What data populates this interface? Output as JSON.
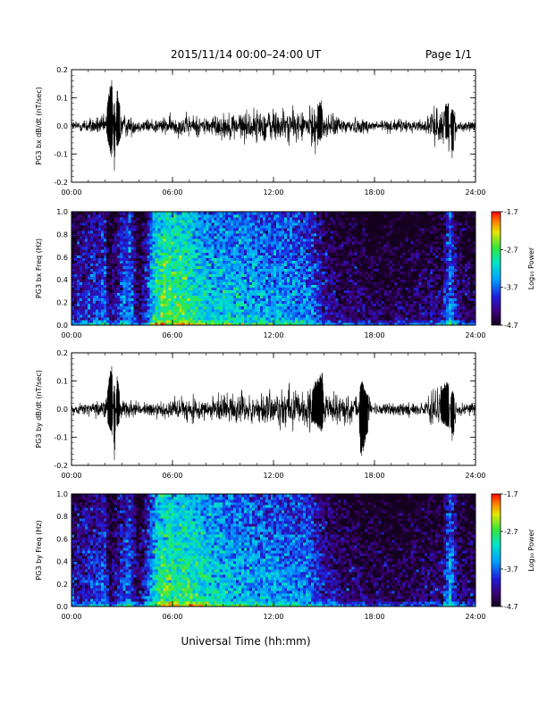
{
  "header": {
    "title": "2015/11/14  00:00–24:00 UT",
    "page_label": "Page 1/1"
  },
  "footer": {
    "xlabel": "Universal Time (hh:mm)"
  },
  "chart_data": [
    {
      "type": "line",
      "ylabel": "PG3 bx dB/dt (nT/sec)",
      "xlabel": "",
      "x_ticks": [
        "00:00",
        "06:00",
        "12:00",
        "18:00",
        "24:00"
      ],
      "xlim": [
        0,
        24
      ],
      "ylim": [
        -0.2,
        0.2
      ],
      "y_ticks": [
        "-0.2",
        "-0.1",
        "0.0",
        "0.1",
        "0.2"
      ],
      "color": "#000000",
      "series": [
        {
          "x": [
            0,
            1,
            2,
            2.4,
            2.55,
            2.7,
            3,
            4,
            5,
            6,
            7,
            8,
            9,
            10,
            11,
            12,
            13,
            14,
            14.8,
            15,
            16,
            17,
            18,
            19,
            20,
            21,
            22.4,
            22.6,
            23,
            24
          ],
          "y": [
            0.015,
            0.025,
            0.03,
            0.2,
            -0.17,
            0.15,
            0.04,
            0.02,
            0.025,
            0.03,
            0.035,
            0.03,
            0.04,
            0.045,
            0.05,
            0.055,
            0.05,
            0.045,
            0.09,
            0.04,
            0.03,
            0.025,
            0.02,
            0.02,
            0.02,
            0.02,
            0.09,
            -0.12,
            0.02,
            0.02
          ]
        }
      ]
    },
    {
      "type": "heatmap",
      "ylabel": "PG3 bx Freq (Hz)",
      "xlabel": "",
      "x_ticks": [
        "00:00",
        "06:00",
        "12:00",
        "18:00",
        "24:00"
      ],
      "xlim": [
        0,
        24
      ],
      "ylim": [
        0,
        1
      ],
      "y_ticks": [
        "0.0",
        "0.2",
        "0.4",
        "0.6",
        "0.8",
        "1.0"
      ],
      "colorbar_label": "Log₁₀ Power",
      "colorbar_ticks": [
        "-1.7",
        "-2.7",
        "-3.7",
        "-4.7"
      ],
      "zlim": [
        -4.7,
        -1.7
      ],
      "x": [
        0,
        1,
        2,
        2.3,
        3,
        3.5,
        4,
        5,
        5.5,
        6,
        7,
        8,
        9,
        10,
        11,
        12,
        13,
        14,
        14.5,
        15,
        16,
        17,
        18,
        19,
        20,
        21,
        22,
        22.5,
        23,
        24
      ],
      "z_mean_log10_power": [
        -4.1,
        -3.9,
        -3.7,
        -4.4,
        -3.7,
        -3.5,
        -4.5,
        -2.9,
        -2.5,
        -2.7,
        -2.8,
        -3.1,
        -3.2,
        -3.2,
        -3.3,
        -3.4,
        -3.4,
        -3.5,
        -3.7,
        -4.1,
        -4.3,
        -4.3,
        -4.4,
        -4.4,
        -4.4,
        -4.3,
        -4.3,
        -3.4,
        -4.3,
        -4.4
      ]
    },
    {
      "type": "line",
      "ylabel": "PG3 by dB/dt (nT/sec)",
      "xlabel": "",
      "x_ticks": [
        "00:00",
        "06:00",
        "12:00",
        "18:00",
        "24:00"
      ],
      "xlim": [
        0,
        24
      ],
      "ylim": [
        -0.2,
        0.2
      ],
      "y_ticks": [
        "-0.2",
        "-0.1",
        "0.0",
        "0.1",
        "0.2"
      ],
      "color": "#000000",
      "series": [
        {
          "x": [
            0,
            1,
            2,
            2.4,
            2.55,
            2.7,
            3,
            4,
            5,
            6,
            7,
            8,
            9,
            10,
            11,
            12,
            13,
            14,
            14.9,
            15,
            16,
            17,
            17.2,
            18,
            19,
            20,
            21,
            22.4,
            22.6,
            23,
            24
          ],
          "y": [
            0.015,
            0.02,
            0.03,
            0.17,
            -0.2,
            0.12,
            0.04,
            0.02,
            0.025,
            0.03,
            0.04,
            0.035,
            0.04,
            0.045,
            0.05,
            0.055,
            0.06,
            0.05,
            0.14,
            0.04,
            0.05,
            0.04,
            -0.19,
            0.02,
            0.02,
            0.02,
            0.02,
            0.11,
            -0.13,
            0.02,
            0.02
          ]
        }
      ]
    },
    {
      "type": "heatmap",
      "ylabel": "PG3 by Freq (Hz)",
      "xlabel": "",
      "x_ticks": [
        "00:00",
        "06:00",
        "12:00",
        "18:00",
        "24:00"
      ],
      "xlim": [
        0,
        24
      ],
      "ylim": [
        0,
        1
      ],
      "y_ticks": [
        "0.0",
        "0.2",
        "0.4",
        "0.6",
        "0.8",
        "1.0"
      ],
      "colorbar_label": "Log₁₀ Power",
      "colorbar_ticks": [
        "-1.7",
        "-2.7",
        "-3.7",
        "-4.7"
      ],
      "zlim": [
        -4.7,
        -1.7
      ],
      "x": [
        0,
        1,
        2,
        2.3,
        3,
        3.5,
        4,
        5,
        5.5,
        6,
        7,
        8,
        9,
        10,
        11,
        12,
        13,
        14,
        14.5,
        15,
        16,
        17,
        18,
        19,
        20,
        21,
        22,
        22.5,
        23,
        24
      ],
      "z_mean_log10_power": [
        -4.1,
        -3.9,
        -3.7,
        -4.4,
        -3.8,
        -3.6,
        -4.5,
        -3.0,
        -2.7,
        -2.8,
        -2.8,
        -3.0,
        -3.2,
        -3.3,
        -3.4,
        -3.4,
        -3.5,
        -3.5,
        -3.8,
        -4.0,
        -4.2,
        -4.3,
        -4.4,
        -4.4,
        -4.4,
        -4.3,
        -4.3,
        -3.3,
        -4.3,
        -4.4
      ]
    }
  ]
}
